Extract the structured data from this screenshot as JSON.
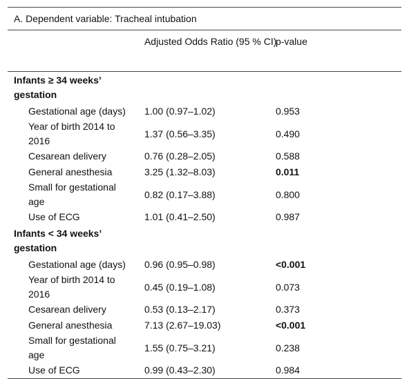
{
  "title": "A. Dependent variable: Tracheal intubation",
  "columns": [
    "Adjusted Odds Ratio (95 % CI)",
    "p-value"
  ],
  "groups": [
    {
      "label": "Infants ≥ 34 weeks’ gestation",
      "rows": [
        [
          "Gestational age (days)",
          "1.00 (0.97–1.02)",
          "0.953"
        ],
        [
          "Year of birth 2014 to 2016",
          "1.37 (0.56–3.35)",
          "0.490"
        ],
        [
          "Cesarean delivery",
          "0.76 (0.28–2.05)",
          "0.588"
        ],
        [
          "General anesthesia",
          "3.25 (1.32–8.03)",
          "0.011"
        ],
        [
          "Small for gestational age",
          "0.82 (0.17–3.88)",
          "0.800"
        ],
        [
          "Use of ECG",
          "1.01 (0.41–2.50)",
          "0.987"
        ]
      ]
    },
    {
      "label": "Infants < 34 weeks’ gestation",
      "rows": [
        [
          "Gestational age (days)",
          "0.96 (0.95–0.98)",
          "<0.001"
        ],
        [
          "Year of birth 2014 to 2016",
          "0.45 (0.19–1.08)",
          "0.073"
        ],
        [
          "Cesarean delivery",
          "0.53 (0.13–2.17)",
          "0.373"
        ],
        [
          "General anesthesia",
          "7.13 (2.67–19.03)",
          "<0.001"
        ],
        [
          "Small for gestational age",
          "1.55 (0.75–3.21)",
          "0.238"
        ],
        [
          "Use of ECG",
          "0.99 (0.43–2.30)",
          "0.984"
        ]
      ]
    }
  ]
}
